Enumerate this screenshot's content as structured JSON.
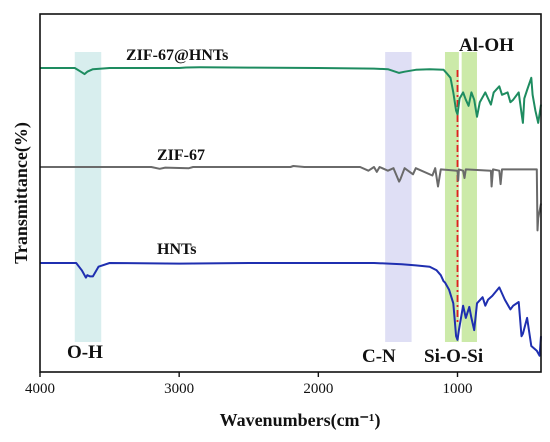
{
  "chart_data": {
    "type": "line",
    "xlabel": "Wavenumbers(cm⁻¹)",
    "ylabel": "Transmittance(%)",
    "xlim": [
      4000,
      400
    ],
    "x_ticks": [
      4000,
      3000,
      2000,
      1000
    ],
    "y_ticks_shown": false,
    "grid": false,
    "legend": "none (series labelled directly above each curve)",
    "series": [
      {
        "name": "ZIF-67@HNTs",
        "color": "#1e8c60",
        "values": [
          [
            4000,
            0
          ],
          [
            3750,
            0
          ],
          [
            3700,
            -3.5
          ],
          [
            3680,
            -5
          ],
          [
            3660,
            -3
          ],
          [
            3620,
            -1
          ],
          [
            3500,
            0
          ],
          [
            3000,
            0
          ],
          [
            2950,
            0.4
          ],
          [
            2850,
            0.6
          ],
          [
            2500,
            0.3
          ],
          [
            2000,
            0
          ],
          [
            1600,
            -0.5
          ],
          [
            1500,
            -1
          ],
          [
            1420,
            -4
          ],
          [
            1380,
            -3
          ],
          [
            1300,
            -1.5
          ],
          [
            1200,
            -1
          ],
          [
            1100,
            -1.5
          ],
          [
            1080,
            -4
          ],
          [
            1050,
            -8
          ],
          [
            1030,
            -20
          ],
          [
            1010,
            -35
          ],
          [
            1000,
            -38
          ],
          [
            985,
            -25
          ],
          [
            960,
            -20
          ],
          [
            940,
            -26
          ],
          [
            920,
            -31
          ],
          [
            900,
            -20
          ],
          [
            880,
            -26
          ],
          [
            860,
            -40
          ],
          [
            840,
            -28
          ],
          [
            800,
            -20
          ],
          [
            780,
            -25
          ],
          [
            760,
            -30
          ],
          [
            740,
            -20
          ],
          [
            700,
            -15
          ],
          [
            680,
            -22
          ],
          [
            640,
            -20
          ],
          [
            620,
            -28
          ],
          [
            600,
            -26
          ],
          [
            560,
            -20
          ],
          [
            540,
            -37
          ],
          [
            530,
            -45
          ],
          [
            520,
            -25
          ],
          [
            500,
            -18
          ],
          [
            470,
            -8
          ],
          [
            460,
            -22
          ],
          [
            440,
            -35
          ],
          [
            420,
            -45
          ],
          [
            400,
            -30
          ]
        ]
      },
      {
        "name": "ZIF-67",
        "color": "#6a6a6a",
        "values": [
          [
            4000,
            0
          ],
          [
            3200,
            0
          ],
          [
            3140,
            -1.5
          ],
          [
            3100,
            -0.5
          ],
          [
            2930,
            -1
          ],
          [
            2900,
            0
          ],
          [
            2200,
            0
          ],
          [
            2180,
            0.8
          ],
          [
            2100,
            0
          ],
          [
            1700,
            0
          ],
          [
            1640,
            -3
          ],
          [
            1600,
            0
          ],
          [
            1580,
            -4
          ],
          [
            1560,
            0
          ],
          [
            1500,
            -3
          ],
          [
            1460,
            -1
          ],
          [
            1420,
            -12
          ],
          [
            1410,
            -10
          ],
          [
            1380,
            -1
          ],
          [
            1320,
            -6
          ],
          [
            1300,
            -1
          ],
          [
            1180,
            -7
          ],
          [
            1160,
            -1
          ],
          [
            1140,
            -16
          ],
          [
            1120,
            -2
          ],
          [
            1000,
            -3
          ],
          [
            995,
            -11
          ],
          [
            990,
            -2
          ],
          [
            960,
            -3
          ],
          [
            950,
            -9
          ],
          [
            940,
            -2
          ],
          [
            760,
            -3
          ],
          [
            755,
            -16
          ],
          [
            745,
            -2
          ],
          [
            700,
            -3
          ],
          [
            690,
            -14
          ],
          [
            680,
            -2
          ],
          [
            430,
            -2
          ],
          [
            425,
            -52
          ],
          [
            420,
            -42
          ],
          [
            400,
            -30
          ]
        ]
      },
      {
        "name": "HNTs",
        "color": "#1f2fb0",
        "values": [
          [
            4000,
            0
          ],
          [
            3740,
            0
          ],
          [
            3700,
            -6
          ],
          [
            3670,
            -12
          ],
          [
            3660,
            -10
          ],
          [
            3640,
            -11
          ],
          [
            3620,
            -11
          ],
          [
            3580,
            -3
          ],
          [
            3500,
            0
          ],
          [
            3000,
            -0.5
          ],
          [
            2500,
            0
          ],
          [
            2000,
            0
          ],
          [
            1600,
            0
          ],
          [
            1400,
            -1
          ],
          [
            1300,
            -2
          ],
          [
            1200,
            -3
          ],
          [
            1150,
            -6
          ],
          [
            1120,
            -10
          ],
          [
            1100,
            -15
          ],
          [
            1090,
            -16
          ],
          [
            1060,
            -22
          ],
          [
            1030,
            -33
          ],
          [
            1010,
            -60
          ],
          [
            1000,
            -63
          ],
          [
            990,
            -55
          ],
          [
            960,
            -35
          ],
          [
            940,
            -45
          ],
          [
            915,
            -36
          ],
          [
            900,
            -45
          ],
          [
            880,
            -55
          ],
          [
            860,
            -33
          ],
          [
            820,
            -28
          ],
          [
            800,
            -35
          ],
          [
            780,
            -30
          ],
          [
            750,
            -27
          ],
          [
            700,
            -20
          ],
          [
            660,
            -30
          ],
          [
            620,
            -38
          ],
          [
            600,
            -35
          ],
          [
            560,
            -32
          ],
          [
            540,
            -60
          ],
          [
            530,
            -58
          ],
          [
            500,
            -45
          ],
          [
            470,
            -68
          ],
          [
            430,
            -72
          ],
          [
            410,
            -76
          ],
          [
            400,
            -60
          ]
        ]
      }
    ],
    "labels": {
      "zif_hnts": "ZIF-67@HNTs",
      "zif": "ZIF-67",
      "hnts": "HNTs",
      "oh": "O-H",
      "cn": "C-N",
      "sios": "Si-O-Si",
      "aloh": "Al-OH"
    },
    "bands": [
      {
        "name": "O-H",
        "range": [
          3750,
          3560
        ],
        "color": "#d4ecec"
      },
      {
        "name": "C-N",
        "range": [
          1520,
          1330
        ],
        "color": "#dcdcf4"
      },
      {
        "name": "Si-O-Si",
        "range": [
          1090,
          990
        ],
        "color": "#c6e8a0"
      },
      {
        "name": "Al-OH",
        "range": [
          970,
          860
        ],
        "color": "#c6e8a0"
      }
    ],
    "reference_line": {
      "x": 1000,
      "color": "#e02020",
      "style": "dash-dot"
    }
  }
}
